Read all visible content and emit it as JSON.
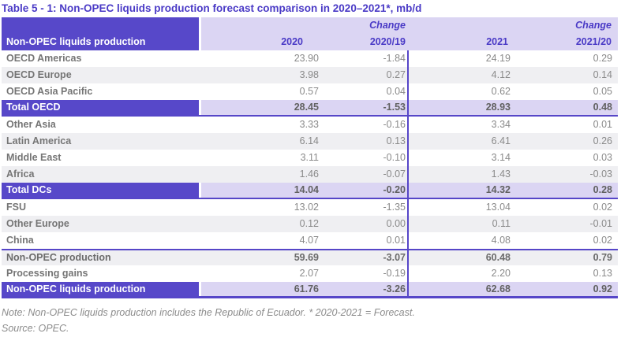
{
  "title": "Table 5 - 1: Non-OPEC liquids production forecast comparison in 2020–2021*, mb/d",
  "colors": {
    "accent_purple": "#5748c9",
    "light_purple": "#dbd5f3",
    "header_text_purple": "#4a3ac6",
    "alt_row_gray": "#efeff2",
    "body_text_gray": "#8a8a8a"
  },
  "table": {
    "label_header": "Non-OPEC liquids production",
    "columns": [
      {
        "change_label": "",
        "label": "2020"
      },
      {
        "change_label": "Change",
        "label": "2020/19"
      },
      {
        "change_label": "",
        "label": "2021"
      },
      {
        "change_label": "Change",
        "label": "2021/20"
      }
    ],
    "rows": [
      {
        "label": "OECD Americas",
        "values": [
          "23.90",
          "-1.84",
          "24.19",
          "0.29"
        ],
        "style": "white"
      },
      {
        "label": "OECD Europe",
        "values": [
          "3.98",
          "0.27",
          "4.12",
          "0.14"
        ],
        "style": "gray"
      },
      {
        "label": "OECD Asia Pacific",
        "values": [
          "0.57",
          "0.04",
          "0.62",
          "0.05"
        ],
        "style": "white"
      },
      {
        "label": "Total OECD",
        "values": [
          "28.45",
          "-1.53",
          "28.93",
          "0.48"
        ],
        "style": "total"
      },
      {
        "label": "Other Asia",
        "values": [
          "3.33",
          "-0.16",
          "3.34",
          "0.01"
        ],
        "style": "white"
      },
      {
        "label": "Latin America",
        "values": [
          "6.14",
          "0.13",
          "6.41",
          "0.26"
        ],
        "style": "gray"
      },
      {
        "label": "Middle East",
        "values": [
          "3.11",
          "-0.10",
          "3.14",
          "0.03"
        ],
        "style": "white"
      },
      {
        "label": "Africa",
        "values": [
          "1.46",
          "-0.07",
          "1.43",
          "-0.03"
        ],
        "style": "gray"
      },
      {
        "label": "Total DCs",
        "values": [
          "14.04",
          "-0.20",
          "14.32",
          "0.28"
        ],
        "style": "total"
      },
      {
        "label": "FSU",
        "values": [
          "13.02",
          "-1.35",
          "13.04",
          "0.02"
        ],
        "style": "white"
      },
      {
        "label": "Other Europe",
        "values": [
          "0.12",
          "0.00",
          "0.11",
          "-0.01"
        ],
        "style": "gray"
      },
      {
        "label": "China",
        "values": [
          "4.07",
          "0.01",
          "4.08",
          "0.02"
        ],
        "style": "white"
      },
      {
        "label": "Non-OPEC production",
        "values": [
          "59.69",
          "-3.07",
          "60.48",
          "0.79"
        ],
        "style": "subtotal"
      },
      {
        "label": "Processing gains",
        "values": [
          "2.07",
          "-0.19",
          "2.20",
          "0.13"
        ],
        "style": "white"
      },
      {
        "label": "Non-OPEC liquids production",
        "values": [
          "61.76",
          "-3.26",
          "62.68",
          "0.92"
        ],
        "style": "total final"
      }
    ]
  },
  "notes": {
    "note": "Note: Non-OPEC liquids production includes the Republic of Ecuador. * 2020-2021 = Forecast.",
    "source": "Source: OPEC."
  }
}
